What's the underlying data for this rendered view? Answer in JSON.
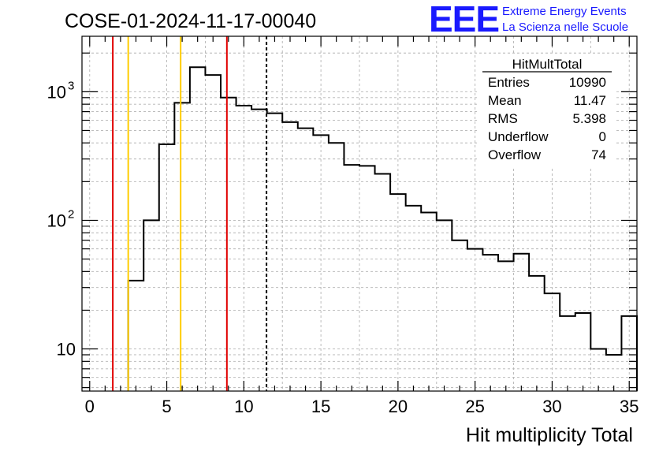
{
  "header": {
    "run_title": "COSE-01-2024-11-17-00040",
    "logo_text": "EEE",
    "logo_line1": "Extreme Energy Events",
    "logo_line2": "La Scienza nelle Scuole"
  },
  "stats": {
    "title": "HitMultTotal",
    "rows": [
      {
        "label": "Entries",
        "value": "10990"
      },
      {
        "label": "Mean",
        "value": "11.47"
      },
      {
        "label": "RMS",
        "value": "5.398"
      },
      {
        "label": "Underflow",
        "value": "0"
      },
      {
        "label": "Overflow",
        "value": "74"
      }
    ]
  },
  "chart_data": {
    "type": "histogram",
    "title": "COSE-01-2024-11-17-00040",
    "xlabel": "Hit multiplicity Total",
    "ylabel": "",
    "xlim": [
      -0.5,
      35.5
    ],
    "ylim": [
      4.7,
      2700
    ],
    "yscale": "log",
    "grid": true,
    "bin_edges": [
      2.5,
      3.5,
      4.5,
      5.5,
      6.5,
      7.5,
      8.5,
      9.5,
      10.5,
      11.5,
      12.5,
      13.5,
      14.5,
      15.5,
      16.5,
      17.5,
      18.5,
      19.5,
      20.5,
      21.5,
      22.5,
      23.5,
      24.5,
      25.5,
      26.5,
      27.5,
      28.5,
      29.5,
      30.5,
      31.5,
      32.5,
      33.5,
      34.5,
      35.5
    ],
    "values": [
      34,
      100,
      390,
      820,
      1550,
      1350,
      900,
      780,
      730,
      680,
      580,
      520,
      460,
      400,
      270,
      265,
      230,
      160,
      130,
      115,
      100,
      70,
      60,
      54,
      48,
      55,
      37,
      27,
      18,
      19,
      10,
      9,
      18
    ],
    "x_ticks": [
      "0",
      "5",
      "10",
      "15",
      "20",
      "25",
      "30",
      "35"
    ],
    "y_ticks": [
      {
        "value": 10,
        "base": "10",
        "exp": ""
      },
      {
        "value": 100,
        "base": "10",
        "exp": "2"
      },
      {
        "value": 1000,
        "base": "10",
        "exp": "3"
      }
    ],
    "vertical_lines": [
      {
        "x": 1.5,
        "color": "#e00000",
        "style": "solid"
      },
      {
        "x": 2.5,
        "color": "#ffcc00",
        "style": "solid"
      },
      {
        "x": 5.9,
        "color": "#ffcc00",
        "style": "solid"
      },
      {
        "x": 8.9,
        "color": "#e00000",
        "style": "solid"
      },
      {
        "x": 11.47,
        "color": "#000000",
        "style": "dashed"
      }
    ]
  }
}
